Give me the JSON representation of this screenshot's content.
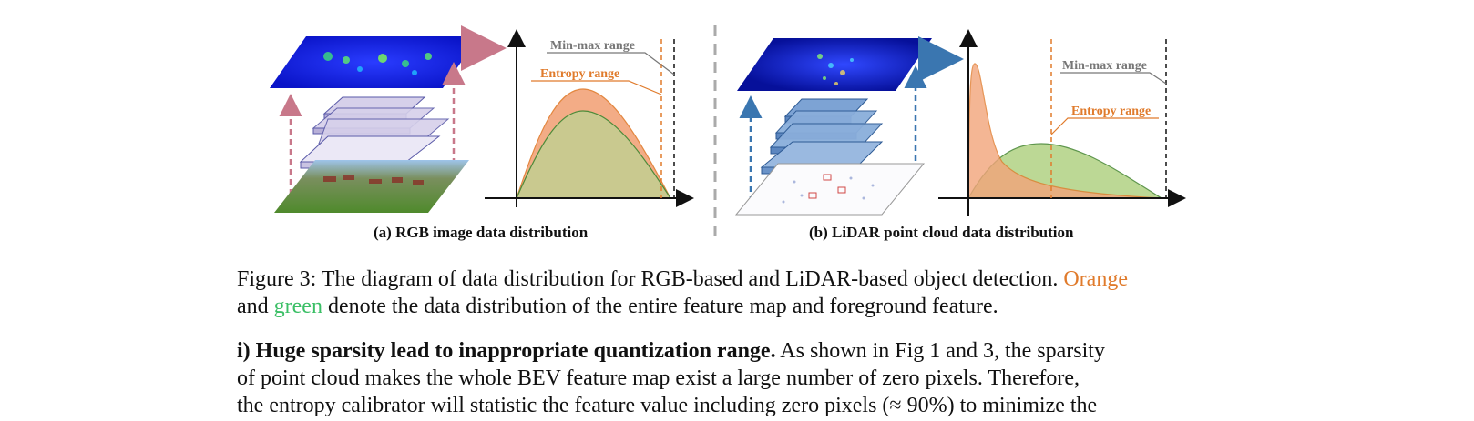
{
  "figure": {
    "panel_a": {
      "label": "(a) RGB image data distribution",
      "minmax_label": "Min-max range",
      "entropy_label": "Entropy range"
    },
    "panel_b": {
      "label": "(b) LiDAR point cloud data distribution",
      "minmax_label": "Min-max range",
      "entropy_label": "Entropy range"
    }
  },
  "caption": {
    "line1_text": "Figure 3: The diagram of data distribution for RGB-based and LiDAR-based object detection.",
    "line1_orange": "Orange",
    "line2_and": "and",
    "line2_green": "green",
    "line2_rest": "denote the data distribution of the entire feature map and foreground feature."
  },
  "paragraph": {
    "bold_lead": "i) Huge sparsity lead to inappropriate quantization range.",
    "line1_rest": "As shown in Fig 1 and 3, the sparsity",
    "line2": "of point cloud makes the whole BEV feature map exist a large number of zero pixels. Therefore,",
    "line3": "the entropy calibrator will statistic the feature value including zero pixels (≈ 90%) to minimize the"
  },
  "colors": {
    "orange": "#e07b2c",
    "green": "#3bbf66",
    "orange_fill": "#f2a47a",
    "green_fill": "#b5d48a",
    "olive_overlap": "#c9c98f",
    "pink_arrow": "#c8788a",
    "blue_arrow": "#3a76b0"
  }
}
